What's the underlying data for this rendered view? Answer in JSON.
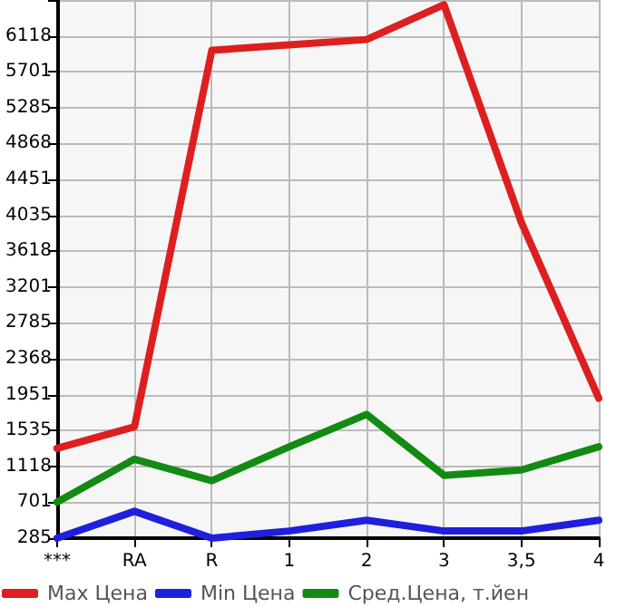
{
  "chart_data": {
    "type": "line",
    "categories": [
      "***",
      "RA",
      "R",
      "1",
      "2",
      "3",
      "3,5",
      "4"
    ],
    "series": [
      {
        "name": "Max Цена",
        "color": "#dd1f1f",
        "values": [
          1327,
          1577,
          5951,
          6014,
          6076,
          6480,
          3951,
          1910
        ]
      },
      {
        "name": "Min Цена",
        "color": "#1f1fdd",
        "values": [
          285,
          597,
          285,
          368,
          493,
          368,
          368,
          493
        ]
      },
      {
        "name": "Сред.Цена, т.йен",
        "color": "#138a13",
        "values": [
          702,
          1202,
          952,
          1347,
          1722,
          1014,
          1077,
          1347
        ]
      }
    ],
    "ylim": [
      285,
      6535
    ],
    "yticks": [
      285,
      701,
      1118,
      1535,
      1951,
      2368,
      2785,
      3201,
      3618,
      4035,
      4451,
      4868,
      5285,
      5701,
      6118,
      {
        "value": 6535,
        "label": null
      }
    ],
    "grid": true,
    "legend": "bottom",
    "marker": "none",
    "line_style": "solid"
  }
}
